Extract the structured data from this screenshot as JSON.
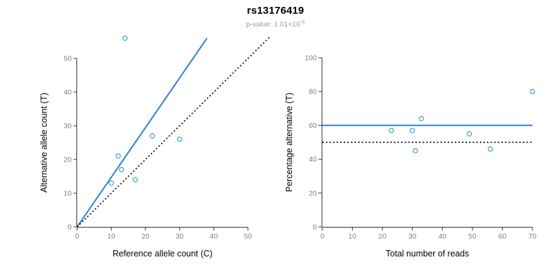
{
  "header": {
    "title": "rs13176419",
    "pvalue": "p-value: 1.01×10",
    "pvalue_exponent": "-3"
  },
  "colors": {
    "line_blue": "#2b7fd6",
    "point_blue": "#3d9fd6",
    "dotted_black": "#000000",
    "axis_line": "#333333",
    "tick_text": "#808080",
    "axis_title": "#000000"
  },
  "chart_data": [
    {
      "type": "scatter",
      "name": "allele-counts",
      "xlabel": "Reference allele count (C)",
      "ylabel": "Alternative allele count (T)",
      "xlim": [
        0,
        50
      ],
      "ylim": [
        0,
        50
      ],
      "xticks": [
        0,
        10,
        20,
        30,
        40,
        50
      ],
      "yticks": [
        0,
        10,
        20,
        30,
        40,
        50
      ],
      "grid": false,
      "points": [
        [
          10,
          13
        ],
        [
          12,
          21
        ],
        [
          13,
          17
        ],
        [
          14,
          56
        ],
        [
          17,
          14
        ],
        [
          22,
          27
        ],
        [
          30,
          26
        ]
      ],
      "lines": [
        {
          "name": "fit-line",
          "style": "solid",
          "color_key": "line_blue",
          "x1": 0,
          "y1": 0,
          "x2": 38,
          "y2": 56
        },
        {
          "name": "identity-line",
          "style": "dotted",
          "color_key": "dotted_black",
          "x1": 0,
          "y1": 0,
          "x2": 56.5,
          "y2": 56.5
        }
      ]
    },
    {
      "type": "scatter",
      "name": "percentage-vs-reads",
      "xlabel": "Total number of reads",
      "ylabel": "Percentage alternative (T)",
      "xlim": [
        0,
        70
      ],
      "ylim": [
        0,
        100
      ],
      "xticks": [
        0,
        10,
        20,
        30,
        40,
        50,
        60,
        70
      ],
      "yticks": [
        0,
        20,
        40,
        60,
        80,
        100
      ],
      "grid": false,
      "points": [
        [
          23,
          57
        ],
        [
          30,
          57
        ],
        [
          31,
          45
        ],
        [
          33,
          64
        ],
        [
          49,
          55
        ],
        [
          56,
          46
        ],
        [
          70,
          80
        ]
      ],
      "lines": [
        {
          "name": "mean-percentage-line",
          "style": "solid",
          "color_key": "line_blue",
          "x1": 0,
          "y1": 60,
          "x2": 70,
          "y2": 60
        },
        {
          "name": "fifty-percent-line",
          "style": "dotted",
          "color_key": "dotted_black",
          "x1": 0,
          "y1": 50,
          "x2": 70,
          "y2": 50
        }
      ]
    }
  ]
}
